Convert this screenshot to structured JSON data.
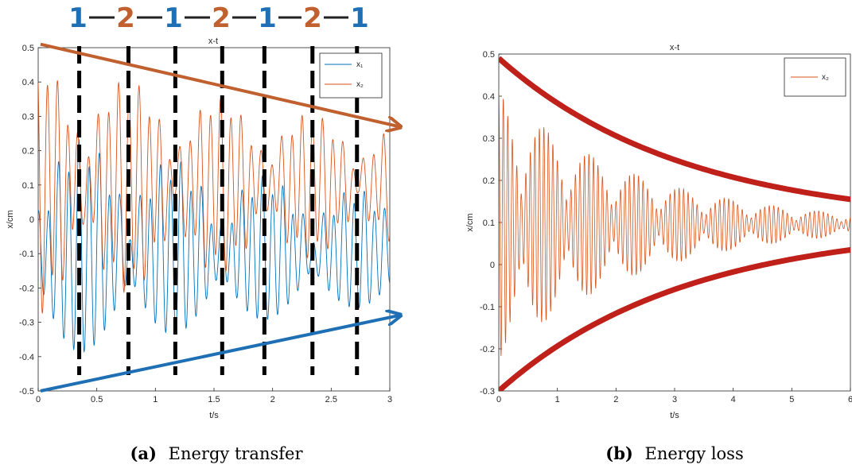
{
  "colors": {
    "x1": "#0072BD",
    "x2": "#D95319",
    "arrow_orange": "#C0602F",
    "arrow_blue": "#1F6FB4",
    "envelope": "#C0201A",
    "seq1": "#1F6FB4",
    "seq2": "#C0602F"
  },
  "chart_data": [
    {
      "type": "line",
      "title": "x-t",
      "xlabel": "t/s",
      "ylabel": "x/cm",
      "xlim": [
        0,
        3
      ],
      "ylim": [
        -0.5,
        0.5
      ],
      "xticks": [
        "0",
        "0.5",
        "1",
        "1.5",
        "2",
        "2.5",
        "3"
      ],
      "yticks": [
        "-0.5",
        "-0.4",
        "-0.3",
        "-0.2",
        "-0.1",
        "0",
        "0.1",
        "0.2",
        "0.3",
        "0.4",
        "0.5"
      ],
      "legend": {
        "position": "top-right",
        "entries": [
          "x₁",
          "x₂"
        ]
      },
      "series": [
        {
          "name": "x₁",
          "waveform": "damped coupled oscillation around about -0.1, amplitude up to 0.35"
        },
        {
          "name": "x₂",
          "waveform": "damped coupled oscillation around about 0.1, amplitude up to 0.4"
        }
      ],
      "dashed_lines_x": [
        0.35,
        0.77,
        1.17,
        1.57,
        1.93,
        2.34,
        2.72
      ],
      "sequence_labels": [
        "1",
        "2",
        "1",
        "2",
        "1",
        "2",
        "1"
      ],
      "arrows": [
        {
          "from": [
            0.02,
            0.51
          ],
          "to": [
            3.08,
            0.27
          ]
        },
        {
          "from": [
            0.02,
            -0.5
          ],
          "to": [
            3.08,
            -0.28
          ]
        }
      ],
      "caption_label": "(a)",
      "caption_text": "Energy transfer"
    },
    {
      "type": "line",
      "title": "x-t",
      "xlabel": "t/s",
      "ylabel": "x/cm",
      "xlim": [
        0,
        6
      ],
      "ylim": [
        -0.3,
        0.5
      ],
      "xticks": [
        "0",
        "1",
        "2",
        "3",
        "4",
        "5",
        "6"
      ],
      "yticks": [
        "-0.3",
        "-0.2",
        "-0.1",
        "0",
        "0.1",
        "0.2",
        "0.3",
        "0.4",
        "0.5"
      ],
      "legend": {
        "position": "top-right",
        "entries": [
          "x₂"
        ]
      },
      "series": [
        {
          "name": "x₂",
          "waveform": "beating oscillation around 0.1 with decaying envelope from 0.4 to 0.05"
        }
      ],
      "envelope": {
        "upper": {
          "start": 0.49,
          "end": 0.155
        },
        "lower": {
          "start": -0.3,
          "end": 0.035
        }
      },
      "caption_label": "(b)",
      "caption_text": "Energy loss"
    }
  ]
}
